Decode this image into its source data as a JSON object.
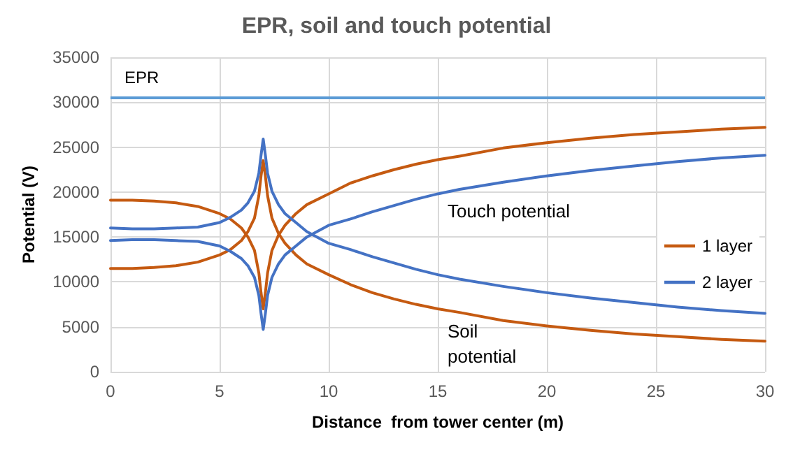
{
  "chart_data": {
    "type": "line",
    "title": "EPR, soil and touch potential",
    "xlabel": "Distance  from tower center (m)",
    "ylabel": "Potential (V)",
    "x": [
      0,
      1,
      2,
      3,
      4,
      5,
      5.5,
      6,
      6.3,
      6.6,
      6.8,
      6.9,
      7,
      7.1,
      7.2,
      7.4,
      7.7,
      8,
      8.5,
      9,
      10,
      11,
      12,
      13,
      14,
      15,
      16,
      18,
      20,
      22,
      24,
      26,
      28,
      30
    ],
    "series": [
      {
        "name": "1 layer",
        "color": "#c55a11",
        "values": [
          19100,
          19100,
          19000,
          18800,
          18400,
          17600,
          17000,
          16000,
          15000,
          13500,
          11000,
          8800,
          7000,
          8800,
          11000,
          13500,
          15200,
          16300,
          17600,
          18600,
          19800,
          21000,
          21800,
          22500,
          23100,
          23600,
          24000,
          24900,
          25500,
          26000,
          26400,
          26700,
          27000,
          27200
        ]
      },
      {
        "color": "#c55a11",
        "values": [
          11500,
          11500,
          11600,
          11800,
          12200,
          13000,
          13600,
          14600,
          15600,
          17100,
          19600,
          21800,
          23500,
          21800,
          19600,
          17100,
          15400,
          14300,
          13000,
          12000,
          10800,
          9700,
          8800,
          8100,
          7500,
          7000,
          6600,
          5700,
          5100,
          4600,
          4200,
          3900,
          3600,
          3400
        ]
      },
      {
        "name": "2 layer",
        "color": "#4472c4",
        "values": [
          14600,
          14700,
          14700,
          14600,
          14500,
          14000,
          13400,
          12600,
          11800,
          10500,
          8500,
          6500,
          4700,
          6500,
          8500,
          10500,
          12000,
          13000,
          14000,
          15000,
          16300,
          17000,
          17800,
          18500,
          19200,
          19800,
          20300,
          21100,
          21800,
          22400,
          22900,
          23400,
          23800,
          24100
        ]
      },
      {
        "color": "#4472c4",
        "values": [
          16000,
          15900,
          15900,
          16000,
          16100,
          16600,
          17200,
          18000,
          18800,
          20100,
          22100,
          24100,
          25900,
          24100,
          22100,
          20100,
          18600,
          17600,
          16600,
          15600,
          14300,
          13600,
          12800,
          12100,
          11400,
          10800,
          10300,
          9500,
          8800,
          8200,
          7700,
          7200,
          6800,
          6500
        ]
      }
    ],
    "ref_lines": [
      {
        "axis": "y",
        "value": 30600,
        "label": "EPR",
        "color": "#5b9bd5"
      }
    ],
    "annotations": [
      "Touch potential",
      "Soil potential"
    ],
    "xlim": [
      0,
      30
    ],
    "xticks": [
      0,
      5,
      10,
      15,
      20,
      25,
      30
    ],
    "ylim": [
      0,
      35000
    ],
    "yticks": [
      0,
      5000,
      10000,
      15000,
      20000,
      25000,
      30000,
      35000
    ],
    "grid": true,
    "legend": "right",
    "marker": "none",
    "line_style": "solid"
  }
}
